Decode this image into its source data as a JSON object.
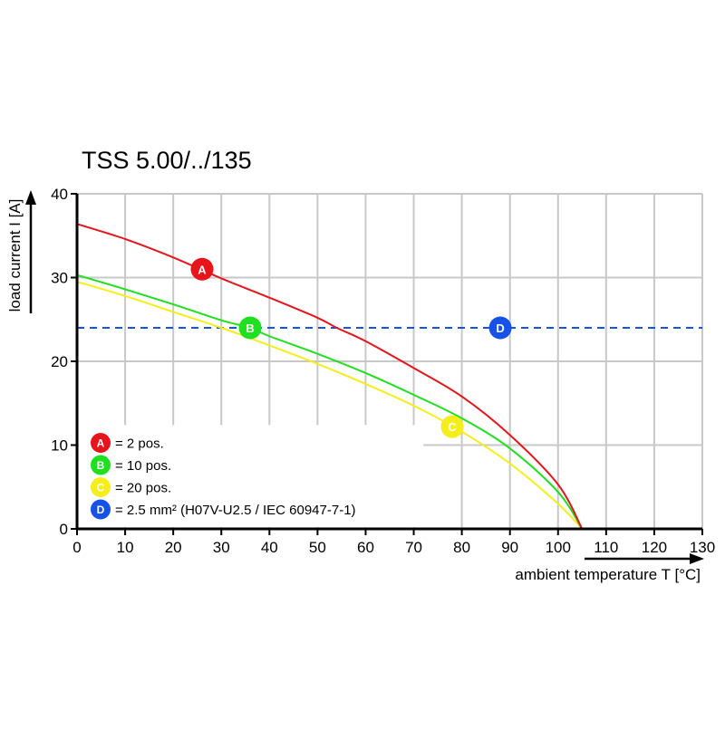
{
  "chart_data": {
    "type": "line",
    "title": "TSS 5.00/../135",
    "xlabel": "ambient temperature T [°C]",
    "ylabel": "load current I [A]",
    "xlim": [
      0,
      130
    ],
    "ylim": [
      0,
      40
    ],
    "x_ticks": [
      0,
      10,
      20,
      30,
      40,
      50,
      60,
      70,
      80,
      90,
      100,
      110,
      120,
      130
    ],
    "y_ticks": [
      0,
      10,
      20,
      30,
      40
    ],
    "grid": true,
    "legend_placement": "bottom-left",
    "series": [
      {
        "id": "A",
        "legend": "= 2 pos.",
        "color": "#e8141b",
        "style": "solid",
        "x": [
          0,
          10,
          20,
          30,
          40,
          50,
          54,
          60,
          70,
          80,
          90,
          100,
          105
        ],
        "y": [
          36.4,
          34.6,
          32.4,
          29.9,
          27.6,
          25.2,
          24.0,
          22.4,
          19.2,
          15.8,
          11.2,
          5.3,
          0
        ],
        "marker": [
          26,
          31
        ]
      },
      {
        "id": "B",
        "legend": "= 10 pos.",
        "color": "#1ee01e",
        "style": "solid",
        "x": [
          0,
          10,
          20,
          30,
          36,
          40,
          50,
          60,
          70,
          80,
          90,
          100,
          105
        ],
        "y": [
          30.3,
          28.6,
          26.8,
          24.9,
          24.0,
          23.0,
          20.9,
          18.6,
          16.0,
          13.2,
          9.6,
          4.4,
          0
        ],
        "marker": [
          36,
          24
        ]
      },
      {
        "id": "C",
        "legend": "= 20 pos.",
        "color": "#f5ee1a",
        "style": "solid",
        "x": [
          0,
          10,
          20,
          30,
          40,
          50,
          60,
          70,
          80,
          90,
          100,
          105
        ],
        "y": [
          29.5,
          27.8,
          25.9,
          24.0,
          21.9,
          19.7,
          17.3,
          14.7,
          11.6,
          7.8,
          3.0,
          0
        ],
        "marker": [
          78,
          12.2
        ]
      },
      {
        "id": "D",
        "legend": "= 2.5 mm² (H07V-U2.5 / IEC 60947-7-1)",
        "color": "#1652e8",
        "style": "dashed",
        "x": [
          0,
          130
        ],
        "y": [
          24,
          24
        ],
        "marker": [
          88,
          24
        ]
      }
    ]
  }
}
